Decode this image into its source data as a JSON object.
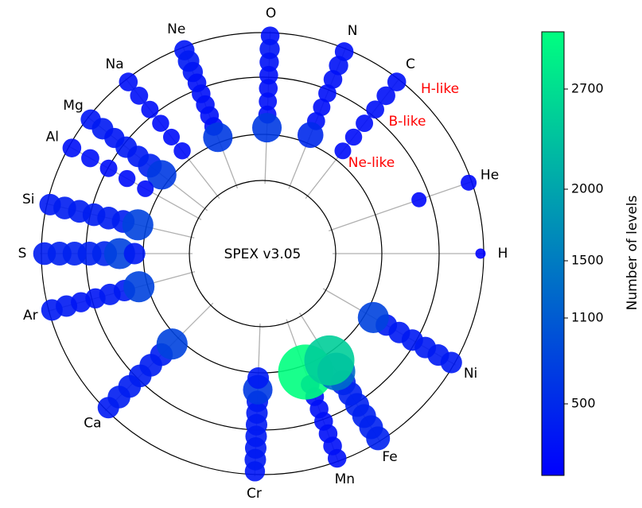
{
  "chart_data": {
    "type": "scatter",
    "title": "",
    "center_label": "SPEX v3.05",
    "elements": [
      "H",
      "He",
      "C",
      "N",
      "O",
      "Ne",
      "Na",
      "Mg",
      "Al",
      "Si",
      "S",
      "Ar",
      "Ca",
      "Cr",
      "Mn",
      "Fe",
      "Ni"
    ],
    "ring_labels": [
      "H-like",
      "B-like",
      "Ne-like"
    ],
    "ring_label_color": "#ff0000",
    "colorbar": {
      "label": "Number of levels",
      "ticks": [
        500,
        1100,
        1500,
        2000,
        2700
      ],
      "range": [
        0,
        3100
      ],
      "colors": [
        "#0000ff",
        "#00ff80"
      ]
    },
    "series": [
      {
        "element": "H",
        "levels": [
          20
        ]
      },
      {
        "element": "He",
        "levels": [
          120,
          100
        ]
      },
      {
        "element": "C",
        "levels": [
          200,
          200,
          180,
          160,
          150,
          140
        ]
      },
      {
        "element": "N",
        "levels": [
          200,
          220,
          200,
          180,
          160,
          180,
          500
        ]
      },
      {
        "element": "O",
        "levels": [
          200,
          250,
          220,
          200,
          200,
          180,
          180,
          700
        ]
      },
      {
        "element": "Ne",
        "levels": [
          250,
          300,
          250,
          200,
          200,
          200,
          200,
          200,
          700
        ]
      },
      {
        "element": "Na",
        "levels": [
          200,
          180,
          160,
          150,
          140,
          150
        ]
      },
      {
        "element": "Mg",
        "levels": [
          250,
          300,
          250,
          300,
          300,
          400,
          700
        ]
      },
      {
        "element": "Al",
        "levels": [
          200,
          180,
          160,
          150,
          140
        ]
      },
      {
        "element": "Si",
        "levels": [
          300,
          350,
          350,
          350,
          350,
          350,
          800
        ]
      },
      {
        "element": "S",
        "levels": [
          350,
          400,
          400,
          400,
          450,
          800,
          300
        ]
      },
      {
        "element": "Ar",
        "levels": [
          300,
          300,
          250,
          250,
          300,
          300,
          800
        ]
      },
      {
        "element": "Ca",
        "levels": [
          300,
          350,
          350,
          350,
          350,
          350,
          800
        ]
      },
      {
        "element": "Cr",
        "levels": [
          250,
          300,
          300,
          300,
          300,
          300,
          300,
          700,
          300
        ]
      },
      {
        "element": "Mn",
        "levels": [
          200,
          200,
          200,
          200,
          200,
          200,
          200,
          3100
        ]
      },
      {
        "element": "Fe",
        "levels": [
          400,
          400,
          400,
          400,
          400,
          450,
          1300,
          2500
        ]
      },
      {
        "element": "Ni",
        "levels": [
          300,
          300,
          300,
          300,
          300,
          300,
          800
        ]
      }
    ]
  }
}
